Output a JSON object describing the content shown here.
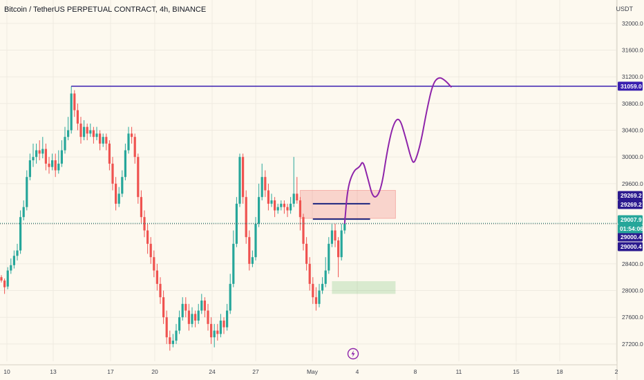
{
  "header": {
    "title": "Bitcoin / TetherUS PERPETUAL CONTRACT, 4h, BINANCE"
  },
  "axis": {
    "unit": "USDT"
  },
  "chart_data": {
    "type": "candlestick",
    "title": "Bitcoin / TetherUS PERPETUAL CONTRACT, 4h, BINANCE",
    "ylim": [
      26940,
      32350
    ],
    "ylabel": "USDT",
    "y_ticks": [
      27200,
      27600,
      28000,
      28400,
      29600,
      30000,
      30400,
      30800,
      31200,
      31600,
      32000
    ],
    "y_tick_labels": [
      "27200.0",
      "27600.0",
      "28000.0",
      "28400.0",
      "29600.0",
      "30000.0",
      "30400.0",
      "30800.0",
      "31200.0",
      "31600.0",
      "32000.0"
    ],
    "x_ticks": [
      "10",
      "13",
      "17",
      "20",
      "24",
      "27",
      "May",
      "4",
      "8",
      "11",
      "15",
      "18",
      "2"
    ],
    "candles": [
      [
        28200,
        28150,
        28230,
        28120
      ],
      [
        28150,
        28050,
        28180,
        27950
      ],
      [
        28060,
        28300,
        28350,
        28020
      ],
      [
        28300,
        28380,
        28480,
        28250
      ],
      [
        28380,
        28520,
        28600,
        28330
      ],
      [
        28520,
        28600,
        28700,
        28450
      ],
      [
        28600,
        29100,
        29200,
        28550
      ],
      [
        29100,
        29250,
        29350,
        29050
      ],
      [
        29250,
        29700,
        29800,
        29200
      ],
      [
        29700,
        29950,
        30050,
        29650
      ],
      [
        29950,
        30000,
        30200,
        29850
      ],
      [
        30000,
        30100,
        30200,
        29900
      ],
      [
        30100,
        30050,
        30250,
        29950
      ],
      [
        30050,
        30120,
        30300,
        29980
      ],
      [
        30120,
        29900,
        30200,
        29800
      ],
      [
        29900,
        29850,
        30000,
        29750
      ],
      [
        29850,
        29950,
        30050,
        29800
      ],
      [
        29950,
        29800,
        30050,
        29700
      ],
      [
        29800,
        29900,
        30100,
        29750
      ],
      [
        29900,
        30100,
        30250,
        29850
      ],
      [
        30100,
        30300,
        30450,
        30050
      ],
      [
        30300,
        30400,
        30600,
        30250
      ],
      [
        30400,
        30950,
        31060,
        30350
      ],
      [
        30950,
        30700,
        31000,
        30600
      ],
      [
        30700,
        30500,
        30800,
        30400
      ],
      [
        30500,
        30300,
        30600,
        30200
      ],
      [
        30300,
        30450,
        30550,
        30250
      ],
      [
        30450,
        30350,
        30500,
        30250
      ],
      [
        30350,
        30400,
        30500,
        30300
      ],
      [
        30400,
        30300,
        30450,
        30200
      ],
      [
        30300,
        30350,
        30450,
        30250
      ],
      [
        30350,
        30200,
        30400,
        30100
      ],
      [
        30200,
        30300,
        30350,
        30150
      ],
      [
        30300,
        30200,
        30350,
        30100
      ],
      [
        30200,
        29900,
        30250,
        29800
      ],
      [
        29900,
        29600,
        30000,
        29500
      ],
      [
        29600,
        29300,
        29700,
        29200
      ],
      [
        29300,
        29450,
        29550,
        29250
      ],
      [
        29450,
        29700,
        29800,
        29400
      ],
      [
        29700,
        30100,
        30200,
        29650
      ],
      [
        30100,
        30350,
        30450,
        30050
      ],
      [
        30350,
        30300,
        30450,
        30200
      ],
      [
        30300,
        30000,
        30350,
        29900
      ],
      [
        30000,
        29400,
        30050,
        29300
      ],
      [
        29400,
        29100,
        29500,
        29000
      ],
      [
        29100,
        28900,
        29200,
        28800
      ],
      [
        28900,
        28700,
        29000,
        28550
      ],
      [
        28700,
        28500,
        28800,
        28400
      ],
      [
        28500,
        28300,
        28600,
        28200
      ],
      [
        28300,
        28100,
        28400,
        28000
      ],
      [
        28100,
        27900,
        28200,
        27800
      ],
      [
        27900,
        27600,
        28000,
        27500
      ],
      [
        27600,
        27300,
        27700,
        27200
      ],
      [
        27300,
        27200,
        27400,
        27100
      ],
      [
        27200,
        27250,
        27350,
        27150
      ],
      [
        27250,
        27400,
        27500,
        27200
      ],
      [
        27400,
        27600,
        27700,
        27350
      ],
      [
        27600,
        27800,
        27900,
        27550
      ],
      [
        27800,
        27700,
        27900,
        27600
      ],
      [
        27700,
        27500,
        27800,
        27400
      ],
      [
        27500,
        27650,
        27750,
        27450
      ],
      [
        27650,
        27550,
        27700,
        27450
      ],
      [
        27550,
        27700,
        27800,
        27500
      ],
      [
        27700,
        27850,
        27950,
        27650
      ],
      [
        27850,
        27700,
        27900,
        27600
      ],
      [
        27700,
        27500,
        27800,
        27400
      ],
      [
        27500,
        27300,
        27600,
        27200
      ],
      [
        27300,
        27400,
        27500,
        27150
      ],
      [
        27400,
        27350,
        27500,
        27250
      ],
      [
        27350,
        27550,
        27650,
        27300
      ],
      [
        27550,
        27450,
        27600,
        27350
      ],
      [
        27450,
        27700,
        27800,
        27400
      ],
      [
        27700,
        28100,
        28250,
        27650
      ],
      [
        28100,
        28700,
        28900,
        28050
      ],
      [
        28700,
        29300,
        29400,
        28650
      ],
      [
        29300,
        30000,
        30050,
        29250
      ],
      [
        30000,
        29400,
        30050,
        29300
      ],
      [
        29400,
        28800,
        29500,
        28700
      ],
      [
        28800,
        28400,
        28900,
        28300
      ],
      [
        28400,
        28500,
        28600,
        28350
      ],
      [
        28500,
        29000,
        29100,
        28450
      ],
      [
        29000,
        29400,
        29600,
        28950
      ],
      [
        29400,
        29700,
        29900,
        29350
      ],
      [
        29700,
        29500,
        29800,
        29400
      ],
      [
        29500,
        29300,
        29600,
        29200
      ],
      [
        29300,
        29350,
        29450,
        29250
      ],
      [
        29350,
        29200,
        29400,
        29100
      ],
      [
        29200,
        29250,
        29300,
        29150
      ],
      [
        29250,
        29300,
        29350,
        29200
      ],
      [
        29300,
        29250,
        29350,
        29150
      ],
      [
        29250,
        29200,
        29300,
        29100
      ],
      [
        29200,
        29300,
        29400,
        29150
      ],
      [
        29300,
        29450,
        30000,
        29250
      ],
      [
        29450,
        29350,
        29700,
        29300
      ],
      [
        29350,
        29100,
        29400,
        28900
      ],
      [
        29100,
        28700,
        29150,
        28600
      ],
      [
        28700,
        28400,
        28800,
        28300
      ],
      [
        28400,
        28100,
        28500,
        28000
      ],
      [
        28100,
        27900,
        28200,
        27800
      ],
      [
        27900,
        27800,
        28050,
        27700
      ],
      [
        27800,
        28000,
        28100,
        27750
      ],
      [
        28000,
        28100,
        28200,
        27950
      ],
      [
        28100,
        28300,
        28500,
        28050
      ],
      [
        28300,
        28700,
        28800,
        28250
      ],
      [
        28700,
        28900,
        29000,
        28650
      ],
      [
        28900,
        28750,
        29000,
        28650
      ],
      [
        28750,
        28500,
        28800,
        28200
      ],
      [
        28500,
        28900,
        29000,
        28450
      ],
      [
        28900,
        29007.9,
        29100,
        28850
      ]
    ],
    "levels": [
      {
        "price": 31059,
        "label": "31059.0",
        "color": "#3a1fb0"
      },
      {
        "price": 29269.2,
        "label": "29269.2",
        "color": "#2b1a8f"
      },
      {
        "price": 29269.2,
        "label": "29269.2",
        "color": "#2b1a8f"
      },
      {
        "price": 29007.9,
        "label": "29007.9",
        "color": "#26a69a"
      },
      {
        "price": 29000.4,
        "label": "29000.4",
        "color": "#2b1a8f"
      },
      {
        "price": 29000.4,
        "label": "29000.4",
        "color": "#2b1a8f"
      }
    ],
    "countdown": "01:54:06",
    "resistance_line": {
      "price": 31059,
      "start_index": 22
    },
    "red_zone": {
      "from_index": 94,
      "to_index": 124,
      "low": 29080,
      "high": 29500
    },
    "green_zone": {
      "from_index": 104,
      "to_index": 124,
      "low": 27950,
      "high": 28140
    },
    "blue_segments": [
      {
        "price": 29300,
        "from_index": 98,
        "to_index": 116
      },
      {
        "price": 29070,
        "from_index": 98,
        "to_index": 116
      }
    ],
    "projection": {
      "color": "#8e24aa",
      "points": [
        [
          29007,
          0
        ],
        [
          29550,
          2
        ],
        [
          29800,
          6
        ],
        [
          29850,
          10
        ],
        [
          29950,
          12
        ],
        [
          29700,
          15
        ],
        [
          29350,
          19
        ],
        [
          29500,
          24
        ],
        [
          30100,
          28
        ],
        [
          30500,
          32
        ],
        [
          30600,
          36
        ],
        [
          30300,
          40
        ],
        [
          29950,
          44
        ],
        [
          29900,
          46
        ],
        [
          30200,
          50
        ],
        [
          30700,
          54
        ],
        [
          31100,
          58
        ],
        [
          31200,
          62
        ],
        [
          31150,
          66
        ],
        [
          31050,
          70
        ]
      ]
    }
  },
  "colors": {
    "up": "#26a69a",
    "down": "#ef5350",
    "background": "#fdf9ef",
    "grid": "#efeae0"
  },
  "icons": {
    "flash": "flash-icon"
  }
}
